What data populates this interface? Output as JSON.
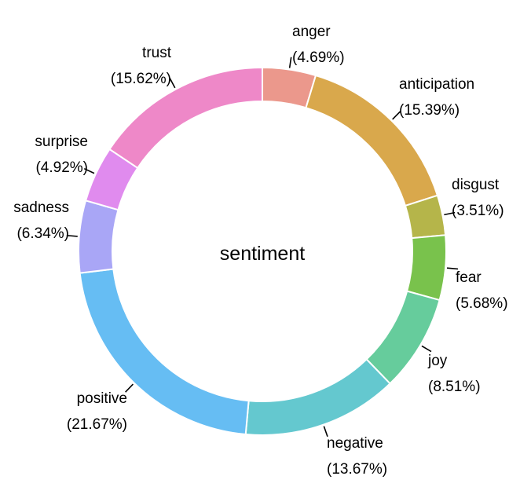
{
  "chart_data": {
    "type": "pie",
    "donut": true,
    "center_label": "sentiment",
    "start_angle_deg": 0,
    "direction": "clockwise",
    "legend": "none",
    "slices": [
      {
        "label": "anger",
        "pct_text": "(4.69%)",
        "value": 4.69,
        "color": "#EB988C"
      },
      {
        "label": "anticipation",
        "pct_text": "(15.39%)",
        "value": 15.39,
        "color": "#D9A84C"
      },
      {
        "label": "disgust",
        "pct_text": "(3.51%)",
        "value": 3.51,
        "color": "#B5B54A"
      },
      {
        "label": "fear",
        "pct_text": "(5.68%)",
        "value": 5.68,
        "color": "#79C24C"
      },
      {
        "label": "joy",
        "pct_text": "(8.51%)",
        "value": 8.51,
        "color": "#66CC9C"
      },
      {
        "label": "negative",
        "pct_text": "(13.67%)",
        "value": 13.67,
        "color": "#64C8CF"
      },
      {
        "label": "positive",
        "pct_text": "(21.67%)",
        "value": 21.67,
        "color": "#66BDF3"
      },
      {
        "label": "sadness",
        "pct_text": "(6.34%)",
        "value": 6.34,
        "color": "#A9A6F6"
      },
      {
        "label": "surprise",
        "pct_text": "(4.92%)",
        "value": 4.92,
        "color": "#E08BEE"
      },
      {
        "label": "trust",
        "pct_text": "(15.62%)",
        "value": 15.62,
        "color": "#EE88C8"
      }
    ]
  }
}
